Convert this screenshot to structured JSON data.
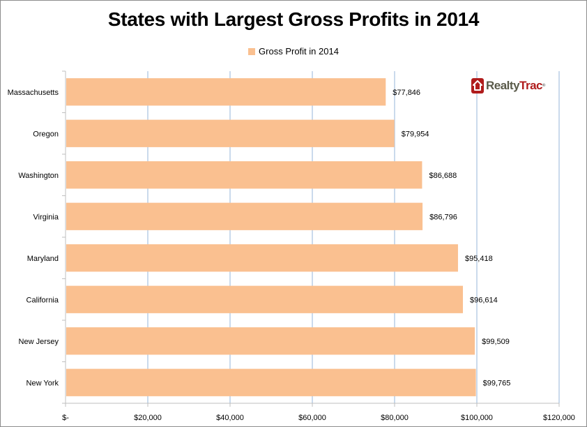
{
  "chart_data": {
    "type": "bar",
    "orientation": "horizontal",
    "title": "States with Largest Gross Profits in 2014",
    "categories": [
      "Massachusetts",
      "Oregon",
      "Washington",
      "Virginia",
      "Maryland",
      "California",
      "New Jersey",
      "New York"
    ],
    "series": [
      {
        "name": "Gross Profit in 2014",
        "color": "#fac090",
        "values": [
          77846,
          79954,
          86688,
          86796,
          95418,
          96614,
          99509,
          99765
        ],
        "labels": [
          "$77,846",
          "$79,954",
          "$86,688",
          "$86,796",
          "$95,418",
          "$96,614",
          "$99,509",
          "$99,765"
        ]
      }
    ],
    "xlabel": "",
    "ylabel": "",
    "xlim": [
      0,
      120000
    ],
    "xticks": [
      0,
      20000,
      40000,
      60000,
      80000,
      100000,
      120000
    ],
    "xtick_labels": [
      "$-",
      "$20,000",
      "$40,000",
      "$60,000",
      "$80,000",
      "$100,000",
      "$120,000"
    ],
    "grid": "vertical",
    "gridline_color": "#b9cde5",
    "legend": "top-center"
  },
  "legend": {
    "label": "Gross Profit in 2014"
  },
  "logo": {
    "part1": "Realty",
    "part2": "Trac",
    "reg": "®"
  }
}
